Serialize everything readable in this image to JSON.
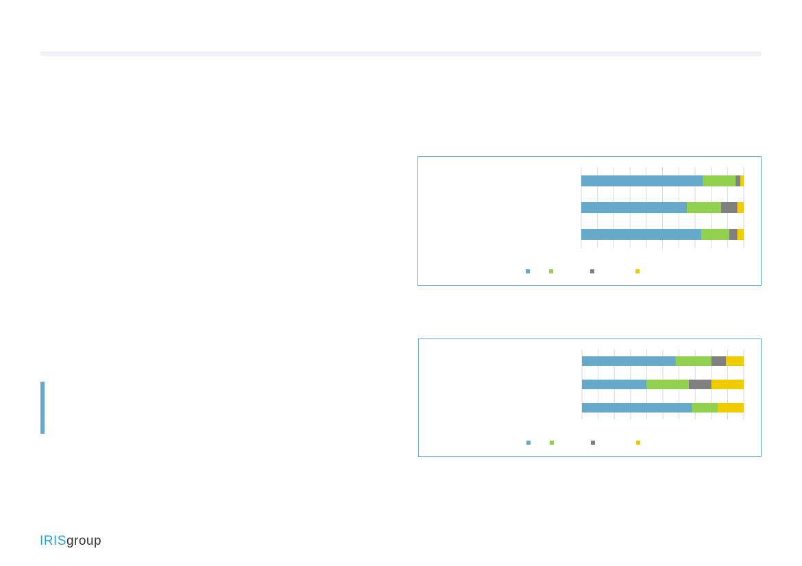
{
  "logo": {
    "part1": "IRIS",
    "part2": "group"
  },
  "colors": {
    "series": [
      "#67a9ca",
      "#92d050",
      "#808080",
      "#eecc00"
    ],
    "accent": "#67a9ca",
    "grid": "#d9d9d9"
  },
  "chart_data": [
    {
      "type": "bar",
      "orientation": "horizontal",
      "stacked": "percent",
      "xlim": [
        0,
        100
      ],
      "grid": true,
      "legend": "bottom",
      "series": [
        {
          "values": [
            75,
            65,
            74
          ]
        },
        {
          "values": [
            20,
            21,
            17
          ]
        },
        {
          "values": [
            3,
            10,
            5
          ]
        },
        {
          "values": [
            2,
            4,
            4
          ]
        }
      ]
    },
    {
      "type": "bar",
      "orientation": "horizontal",
      "stacked": "percent",
      "xlim": [
        0,
        100
      ],
      "grid": true,
      "legend": "bottom",
      "series": [
        {
          "values": [
            58,
            40,
            68
          ]
        },
        {
          "values": [
            22,
            26,
            16
          ]
        },
        {
          "values": [
            9,
            14,
            0
          ]
        },
        {
          "values": [
            11,
            20,
            16
          ]
        }
      ]
    }
  ]
}
